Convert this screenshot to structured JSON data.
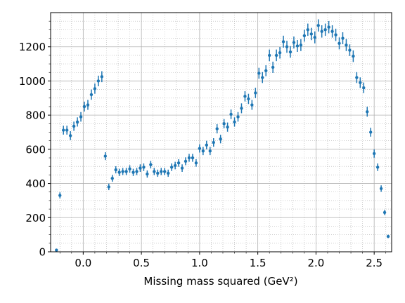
{
  "chart_data": {
    "type": "errorbar",
    "xlabel": "Missing mass squared (GeV²)",
    "xlim": [
      -0.28,
      2.65
    ],
    "ylim": [
      0,
      1400
    ],
    "xticks": [
      {
        "value": 0,
        "label": "0.0"
      },
      0.5,
      {
        "value": 1,
        "label": "1.0"
      },
      1.5,
      {
        "value": 2,
        "label": "2.0"
      },
      2.5
    ],
    "yticks": [
      0,
      200,
      400,
      600,
      800,
      1000,
      1200
    ],
    "xminorticks": [
      -0.2,
      -0.1,
      0.1,
      0.2,
      0.3,
      0.4,
      0.6,
      0.7,
      0.8,
      0.9,
      1.1,
      1.2,
      1.3,
      1.4,
      1.6,
      1.7,
      1.8,
      1.9,
      2.1,
      2.2,
      2.3,
      2.4,
      2.6
    ],
    "yminorticks": [
      50,
      100,
      150,
      250,
      300,
      350,
      450,
      500,
      550,
      650,
      700,
      750,
      850,
      900,
      950,
      1050,
      1100,
      1150,
      1250,
      1300,
      1350
    ],
    "grid": true,
    "minor_grid": true,
    "series": [
      {
        "color": "#1f77b4",
        "x": [
          -0.23,
          -0.2,
          -0.17,
          -0.14,
          -0.11,
          -0.08,
          -0.05,
          -0.02,
          0.01,
          0.04,
          0.07,
          0.1,
          0.13,
          0.16,
          0.19,
          0.22,
          0.25,
          0.28,
          0.31,
          0.34,
          0.37,
          0.4,
          0.43,
          0.46,
          0.49,
          0.52,
          0.55,
          0.58,
          0.61,
          0.64,
          0.67,
          0.7,
          0.73,
          0.76,
          0.79,
          0.82,
          0.85,
          0.88,
          0.91,
          0.94,
          0.97,
          1.0,
          1.03,
          1.06,
          1.09,
          1.12,
          1.15,
          1.18,
          1.21,
          1.24,
          1.27,
          1.3,
          1.33,
          1.36,
          1.39,
          1.42,
          1.45,
          1.48,
          1.51,
          1.54,
          1.57,
          1.6,
          1.63,
          1.66,
          1.69,
          1.72,
          1.75,
          1.78,
          1.81,
          1.84,
          1.87,
          1.9,
          1.93,
          1.96,
          1.99,
          2.02,
          2.05,
          2.08,
          2.11,
          2.14,
          2.17,
          2.2,
          2.23,
          2.26,
          2.29,
          2.32,
          2.35,
          2.38,
          2.41,
          2.44,
          2.47,
          2.5,
          2.53,
          2.56,
          2.59,
          2.62
        ],
        "values": [
          10,
          330,
          712,
          712,
          680,
          735,
          760,
          790,
          850,
          860,
          920,
          955,
          1000,
          1025,
          560,
          380,
          430,
          480,
          465,
          470,
          470,
          485,
          465,
          470,
          490,
          495,
          455,
          510,
          470,
          460,
          470,
          470,
          460,
          495,
          505,
          520,
          490,
          530,
          550,
          550,
          520,
          605,
          590,
          625,
          590,
          640,
          720,
          660,
          750,
          730,
          805,
          760,
          790,
          840,
          910,
          895,
          860,
          930,
          1045,
          1020,
          1060,
          1150,
          1080,
          1150,
          1165,
          1230,
          1200,
          1170,
          1225,
          1205,
          1210,
          1265,
          1300,
          1275,
          1255,
          1325,
          1290,
          1300,
          1315,
          1290,
          1270,
          1220,
          1250,
          1210,
          1180,
          1145,
          1020,
          990,
          960,
          820,
          700,
          575,
          495,
          370,
          230,
          90
        ],
        "errors": [
          8,
          18,
          26,
          26,
          26,
          27,
          27,
          28,
          29,
          29,
          30,
          30,
          31,
          32,
          23,
          19,
          20,
          21,
          21,
          21,
          21,
          22,
          21,
          21,
          22,
          22,
          21,
          22,
          21,
          21,
          21,
          21,
          21,
          22,
          22,
          22,
          22,
          23,
          23,
          23,
          22,
          24,
          24,
          25,
          24,
          25,
          27,
          25,
          27,
          27,
          28,
          27,
          28,
          29,
          30,
          30,
          29,
          30,
          32,
          32,
          32,
          34,
          33,
          34,
          34,
          35,
          35,
          34,
          35,
          35,
          35,
          35,
          36,
          36,
          35,
          36,
          36,
          36,
          36,
          36,
          36,
          35,
          35,
          35,
          34,
          34,
          32,
          31,
          31,
          29,
          26,
          24,
          22,
          19,
          15,
          10
        ]
      }
    ]
  }
}
